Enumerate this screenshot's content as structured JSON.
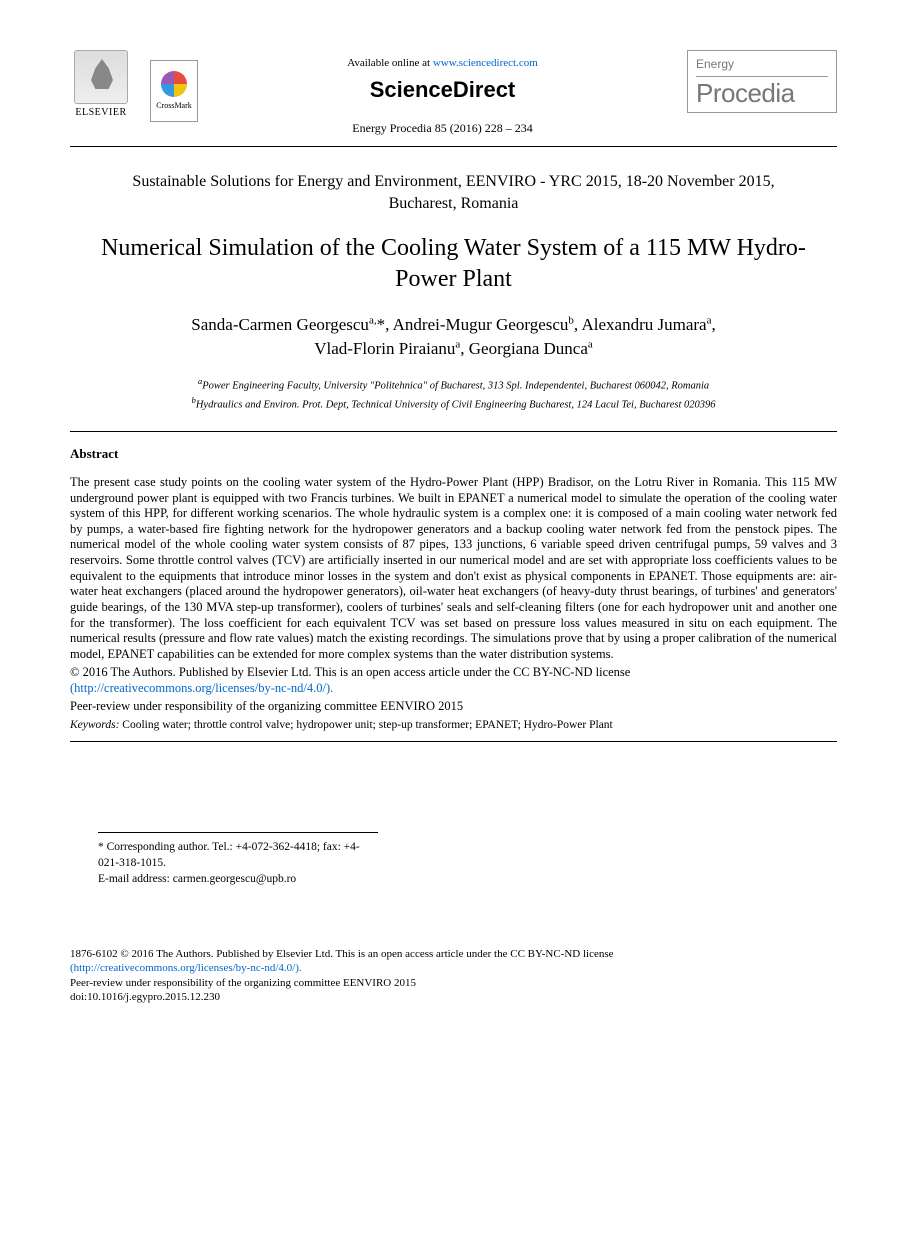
{
  "header": {
    "elsevier_label": "ELSEVIER",
    "crossmark_label": "CrossMark",
    "available_text": "Available online at ",
    "available_url": "www.sciencedirect.com",
    "sd_logo_text": "ScienceDirect",
    "citation": "Energy Procedia 85 (2016) 228 – 234",
    "journal_small": "Energy",
    "journal_big": "Procedia"
  },
  "conference": "Sustainable Solutions for Energy and Environment, EENVIRO - YRC 2015, 18-20 November 2015, Bucharest, Romania",
  "title": "Numerical Simulation of the Cooling Water System of a 115 MW Hydro-Power Plant",
  "authors": {
    "a1_name": "Sanda-Carmen Georgescu",
    "a1_sup": "a,",
    "a2_name": "*, Andrei-Mugur Georgescu",
    "a2_sup": "b",
    "a3_name": ", Alexandru Jumara",
    "a3_sup": "a",
    "a4_name": "Vlad-Florin Piraianu",
    "a4_sup": "a",
    "a5_name": ", Georgiana Dunca",
    "a5_sup": "a"
  },
  "affiliations": {
    "a": "Power Engineering Faculty, University \"Politehnica\" of Bucharest, 313 Spl. Independentei, Bucharest 060042, Romania",
    "b": "Hydraulics and Environ. Prot. Dept, Technical University of Civil Engineering Bucharest, 124 Lacul Tei, Bucharest 020396"
  },
  "abstract_heading": "Abstract",
  "abstract_body": "The present case study points on the cooling water system of the Hydro-Power Plant (HPP) Bradisor, on the Lotru River in Romania. This 115 MW underground power plant is equipped with two Francis turbines. We built in EPANET a numerical model to simulate the operation of the cooling water system of this HPP, for different working scenarios. The whole hydraulic system is a complex one: it is composed of a main cooling water network fed by pumps, a water-based fire fighting network for the hydropower generators and a backup cooling water network fed from the penstock pipes. The numerical model of the whole cooling water system consists of 87 pipes, 133 junctions, 6 variable speed driven centrifugal pumps, 59 valves and 3 reservoirs. Some throttle control valves (TCV) are artificially inserted in our numerical model and are set with appropriate loss coefficients values to be equivalent to the equipments that introduce minor losses in the system and don't exist as physical components in EPANET. Those equipments are: air-water heat exchangers (placed around the hydropower generators), oil-water heat exchangers (of heavy-duty thrust bearings, of turbines' and generators' guide bearings, of the 130 MVA step-up transformer), coolers of turbines' seals and self-cleaning filters (one for each hydropower unit and another one for the transformer). The loss coefficient for each equivalent TCV was set based on pressure loss values measured in situ on each equipment. The numerical results (pressure and flow rate values) match the existing recordings. The simulations prove that by using a proper calibration of the numerical model, EPANET capabilities can be extended for more complex systems than the water distribution systems.",
  "copyright_line": "© 2016 The Authors. Published by Elsevier Ltd. This is an open access article under the CC BY-NC-ND license",
  "license_url_display": "(http://creativecommons.org/licenses/by-nc-nd/4.0/).",
  "peer_review": "Peer-review under responsibility of the organizing committee EENVIRO 2015",
  "keywords_label": "Keywords:",
  "keywords_text": " Cooling water; throttle control valve; hydropower unit; step-up transformer; EPANET; Hydro-Power Plant",
  "corresponding": {
    "line1": "* Corresponding author. Tel.: +4-072-362-4418; fax: +4-021-318-1015.",
    "line2_label": "E-mail address: ",
    "line2_value": "carmen.georgescu@upb.ro"
  },
  "footer": {
    "line1": "1876-6102 © 2016 The Authors. Published by Elsevier Ltd. This is an open access article under the CC BY-NC-ND license",
    "line2": "(http://creativecommons.org/licenses/by-nc-nd/4.0/).",
    "line3": "Peer-review under responsibility of the organizing committee EENVIRO 2015",
    "line4": "doi:10.1016/j.egypro.2015.12.230"
  }
}
